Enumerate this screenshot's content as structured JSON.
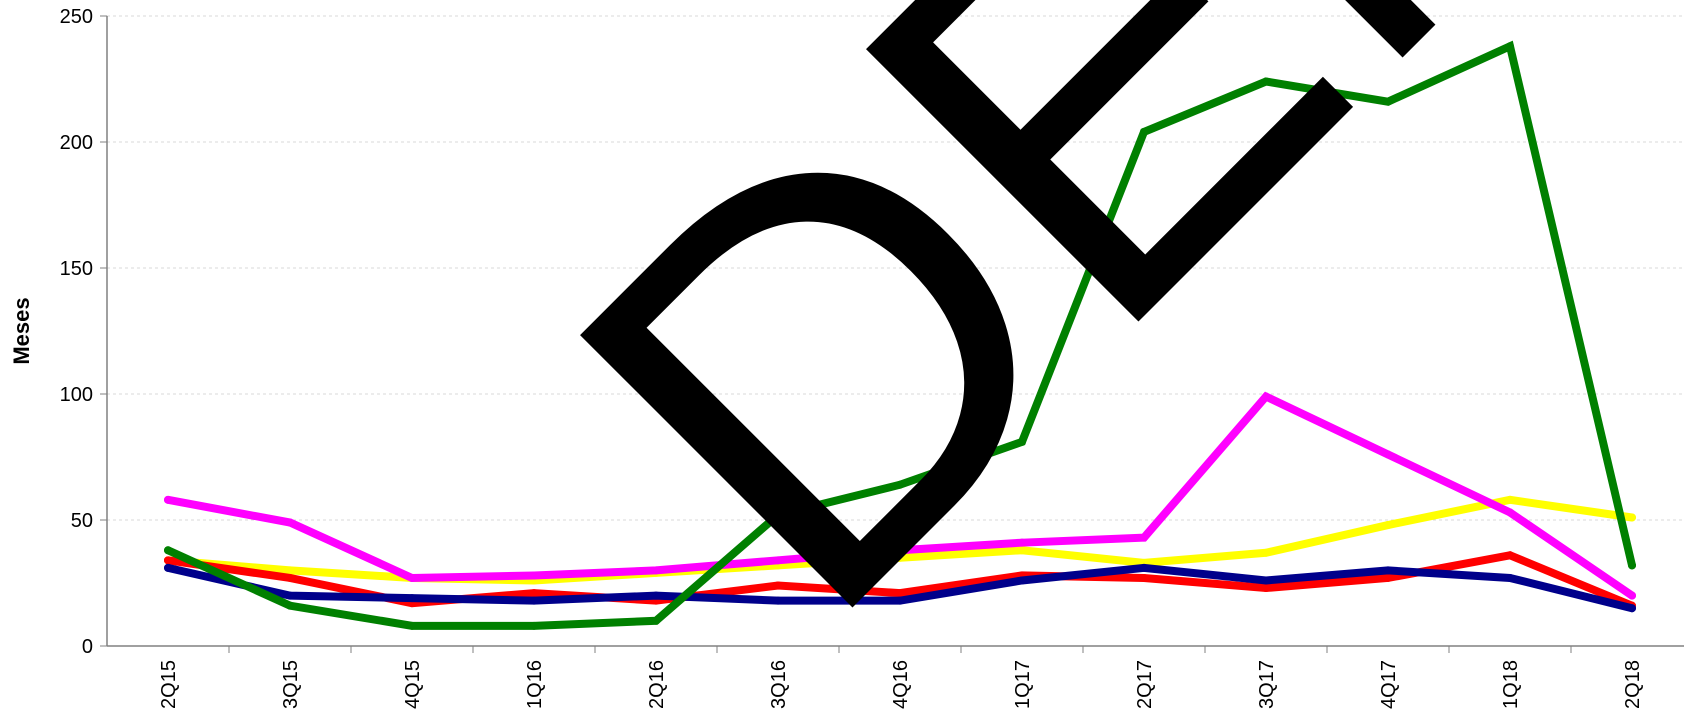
{
  "chart_data": {
    "type": "line",
    "ylabel": "Meses",
    "xlabel": "",
    "categories": [
      "2Q15",
      "3Q15",
      "4Q15",
      "1Q16",
      "2Q16",
      "3Q16",
      "4Q16",
      "1Q17",
      "2Q17",
      "3Q17",
      "4Q17",
      "1Q18",
      "2Q18"
    ],
    "ylim": [
      0,
      250
    ],
    "yticks": [
      0,
      50,
      100,
      150,
      200,
      250
    ],
    "grid": true,
    "series": [
      {
        "color": "#ffff00",
        "values": [
          34,
          30,
          27,
          26,
          29,
          32,
          35,
          38,
          33,
          37,
          48,
          58,
          51
        ]
      },
      {
        "color": "#ff0000",
        "values": [
          34,
          27,
          17,
          21,
          18,
          24,
          21,
          28,
          27,
          23,
          27,
          36,
          16
        ]
      },
      {
        "color": "#00008b",
        "values": [
          31,
          20,
          19,
          18,
          20,
          18,
          18,
          26,
          31,
          26,
          30,
          27,
          15
        ]
      },
      {
        "color": "#ff00ff",
        "values": [
          58,
          49,
          27,
          28,
          30,
          34,
          38,
          41,
          43,
          99,
          76,
          53,
          20
        ]
      },
      {
        "color": "#008000",
        "values": [
          38,
          16,
          8,
          8,
          10,
          52,
          64,
          81,
          204,
          224,
          216,
          238,
          32
        ]
      }
    ]
  },
  "watermark": {
    "text": "DEMO",
    "color": "#000000"
  }
}
